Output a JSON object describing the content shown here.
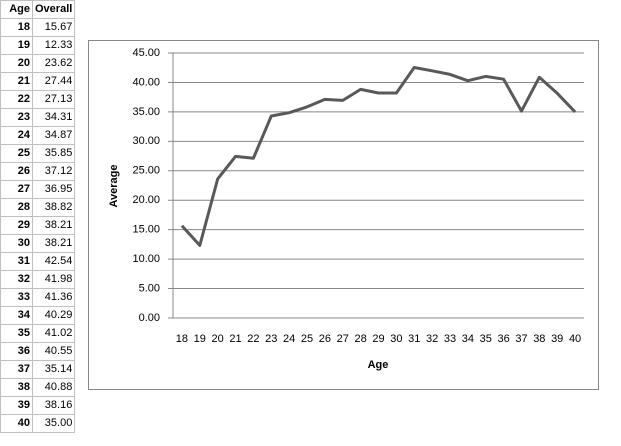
{
  "table": {
    "headers": [
      "Age",
      "Overall"
    ],
    "rows": [
      [
        "18",
        "15.67"
      ],
      [
        "19",
        "12.33"
      ],
      [
        "20",
        "23.62"
      ],
      [
        "21",
        "27.44"
      ],
      [
        "22",
        "27.13"
      ],
      [
        "23",
        "34.31"
      ],
      [
        "24",
        "34.87"
      ],
      [
        "25",
        "35.85"
      ],
      [
        "26",
        "37.12"
      ],
      [
        "27",
        "36.95"
      ],
      [
        "28",
        "38.82"
      ],
      [
        "29",
        "38.21"
      ],
      [
        "30",
        "38.21"
      ],
      [
        "31",
        "42.54"
      ],
      [
        "32",
        "41.98"
      ],
      [
        "33",
        "41.36"
      ],
      [
        "34",
        "40.29"
      ],
      [
        "35",
        "41.02"
      ],
      [
        "36",
        "40.55"
      ],
      [
        "37",
        "35.14"
      ],
      [
        "38",
        "40.88"
      ],
      [
        "39",
        "38.16"
      ],
      [
        "40",
        "35.00"
      ]
    ]
  },
  "chart_data": {
    "type": "line",
    "x_label": "Age",
    "y_label": "Average",
    "categories": [
      "18",
      "19",
      "20",
      "21",
      "22",
      "23",
      "24",
      "25",
      "26",
      "27",
      "28",
      "29",
      "30",
      "31",
      "32",
      "33",
      "34",
      "35",
      "36",
      "37",
      "38",
      "39",
      "40"
    ],
    "values": [
      15.67,
      12.33,
      23.62,
      27.44,
      27.13,
      34.31,
      34.87,
      35.85,
      37.12,
      36.95,
      38.82,
      38.21,
      38.21,
      42.54,
      41.98,
      41.36,
      40.29,
      41.02,
      40.55,
      35.14,
      40.88,
      38.16,
      35.0
    ],
    "color": "#595959",
    "ylim": [
      0,
      45
    ],
    "yticks": [
      {
        "value": 0,
        "label": "0.00"
      },
      {
        "value": 5,
        "label": "5.00"
      },
      {
        "value": 10,
        "label": "10.00"
      },
      {
        "value": 15,
        "label": "15.00"
      },
      {
        "value": 20,
        "label": "20.00"
      },
      {
        "value": 25,
        "label": "25.00"
      },
      {
        "value": 30,
        "label": "30.00"
      },
      {
        "value": 35,
        "label": "35.00"
      },
      {
        "value": 40,
        "label": "40.00"
      },
      {
        "value": 45,
        "label": "45.00"
      }
    ],
    "grid": true
  }
}
